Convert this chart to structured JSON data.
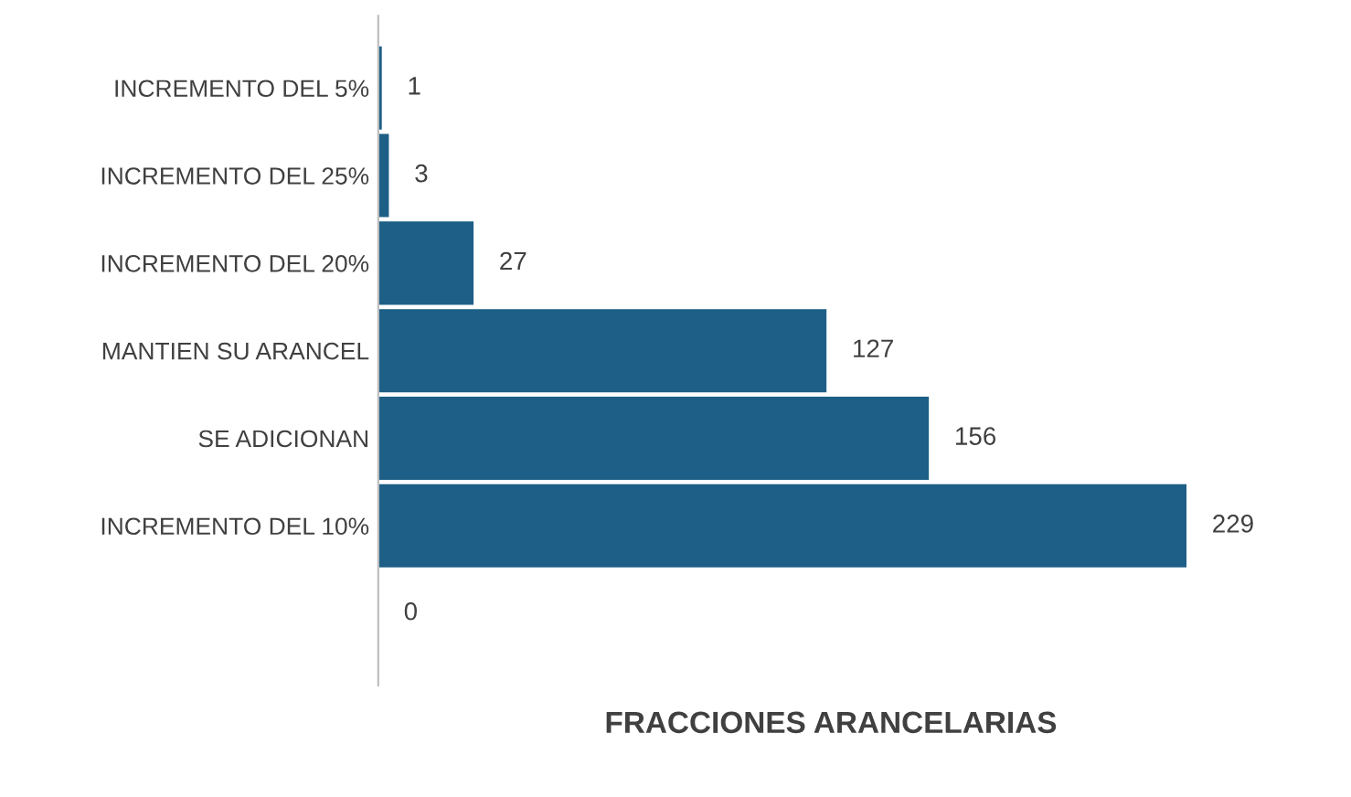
{
  "chart_data": {
    "type": "bar",
    "orientation": "horizontal",
    "xlabel": "FRACCIONES ARANCELARIAS",
    "categories": [
      "INCREMENTO DEL 5%",
      "INCREMENTO DEL 25%",
      "INCREMENTO DEL 20%",
      "MANTIEN SU ARANCEL",
      "SE ADICIONAN",
      "INCREMENTO DEL 10%",
      null
    ],
    "values": [
      1,
      3,
      27,
      127,
      156,
      229,
      0
    ],
    "color": "#1d5f86",
    "data_labels": true,
    "tick_labels": "y",
    "grid": false,
    "legend": false
  }
}
